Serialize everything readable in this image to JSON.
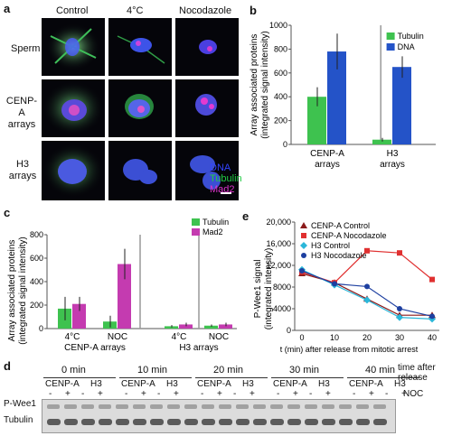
{
  "panels": {
    "a": "a",
    "b": "b",
    "c": "c",
    "d": "d",
    "e": "e"
  },
  "panel_a": {
    "columns": [
      "Control",
      "4°C",
      "Nocodazole"
    ],
    "rows": [
      "Sperm",
      "CENP-A arrays",
      "H3 arrays"
    ],
    "legend": [
      {
        "text": "DNA",
        "color": "#3344ff"
      },
      {
        "text": "Tubulin",
        "color": "#22cc44"
      },
      {
        "text": "Mad2",
        "color": "#dd33cc"
      }
    ]
  },
  "chart_data": [
    {
      "id": "b",
      "type": "bar",
      "ylabel": "Array associated proteins (integrated signal intensity)",
      "yticks": [
        "0",
        "200",
        "400",
        "600",
        "800",
        "1000"
      ],
      "ylim": [
        0,
        1000
      ],
      "categories": [
        "CENP-A arrays",
        "H3 arrays"
      ],
      "series": [
        {
          "name": "Tubulin",
          "color": "#3ec24f",
          "values": [
            400,
            40
          ],
          "err": [
            80,
            15
          ]
        },
        {
          "name": "DNA",
          "color": "#2453c8",
          "values": [
            780,
            650
          ],
          "err": [
            150,
            90
          ]
        }
      ]
    },
    {
      "id": "c",
      "type": "bar",
      "ylabel": "Array associated proteins (integrated signal intensity)",
      "yticks": [
        "0",
        "200",
        "400",
        "600",
        "800"
      ],
      "ylim": [
        0,
        800
      ],
      "groups": [
        {
          "label": "CENP-A arrays",
          "sub": [
            "4°C",
            "NOC"
          ]
        },
        {
          "label": "H3 arrays",
          "sub": [
            "4°C",
            "NOC"
          ]
        }
      ],
      "series": [
        {
          "name": "Tubulin",
          "color": "#3ec24f",
          "values": [
            170,
            60,
            20,
            25
          ],
          "err": [
            100,
            50,
            10,
            10
          ]
        },
        {
          "name": "Mad2",
          "color": "#c43bb0",
          "values": [
            210,
            550,
            35,
            35
          ],
          "err": [
            60,
            130,
            15,
            15
          ]
        }
      ]
    },
    {
      "id": "e",
      "type": "line",
      "ylabel": "P-Wee1 signal (integrated intensity)",
      "xlabel": "t (min) after release from mitotic arrest",
      "yticks": [
        "0",
        "4000",
        "8000",
        "12,000",
        "16,000",
        "20,000"
      ],
      "xticks": [
        "0",
        "10",
        "20",
        "30",
        "40"
      ],
      "xlim": [
        0,
        40
      ],
      "ylim": [
        0,
        20000
      ],
      "x": [
        0,
        10,
        20,
        30,
        40
      ],
      "series": [
        {
          "name": "CENP-A Control",
          "color": "#8b1a1a",
          "marker": "triangle",
          "values": [
            10500,
            8800,
            5800,
            2800,
            2800
          ]
        },
        {
          "name": "CENP-A Nocodazole",
          "color": "#e03030",
          "marker": "square",
          "values": [
            10800,
            8800,
            14700,
            14300,
            9400
          ]
        },
        {
          "name": "H3 Control",
          "color": "#2bb7d9",
          "marker": "diamond",
          "values": [
            11200,
            8400,
            5600,
            2400,
            2100
          ]
        },
        {
          "name": "H3 Nocodazole",
          "color": "#1d3fa0",
          "marker": "circle",
          "values": [
            11000,
            8600,
            8100,
            4000,
            2600
          ]
        }
      ]
    }
  ],
  "panel_d": {
    "times": [
      "0 min",
      "10 min",
      "20 min",
      "30 min",
      "40 min"
    ],
    "time_after": "time after release",
    "sub": [
      "CENP-A",
      "H3"
    ],
    "signs": [
      "-",
      "+",
      "-",
      "+"
    ],
    "noc": "NOC",
    "rows": [
      "P-Wee1",
      "Tubulin"
    ]
  }
}
